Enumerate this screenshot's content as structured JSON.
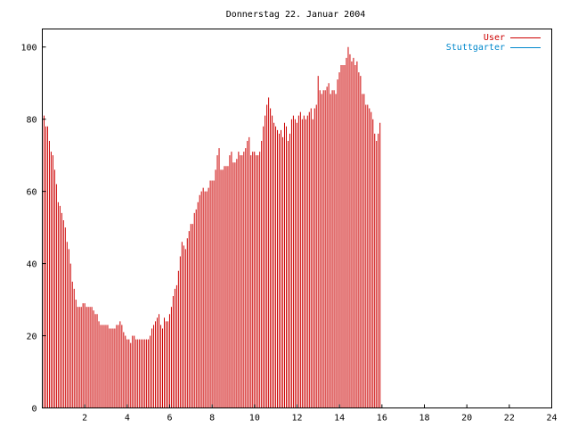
{
  "chart_data": {
    "type": "bar",
    "title": "Donnerstag 22. Januar 2004",
    "xlabel": "",
    "ylabel": "",
    "xlim": [
      0,
      24
    ],
    "ylim": [
      0,
      105
    ],
    "x_ticks": [
      "2",
      "4",
      "6",
      "8",
      "10",
      "12",
      "14",
      "16",
      "18",
      "20",
      "22",
      "24"
    ],
    "y_ticks": [
      "0",
      "20",
      "40",
      "60",
      "80",
      "100"
    ],
    "grid": false,
    "legend_position": "top-right",
    "x_step": 0.0833,
    "series": [
      {
        "name": "User",
        "color": "#cc0000",
        "values": [
          81,
          78,
          78,
          74,
          71,
          70,
          66,
          62,
          57,
          56,
          54,
          52,
          50,
          46,
          44,
          40,
          35,
          33,
          30,
          28,
          28,
          28,
          29,
          29,
          28,
          28,
          28,
          28,
          27,
          26,
          26,
          24,
          23,
          23,
          23,
          23,
          23,
          22,
          22,
          22,
          22,
          23,
          23,
          24,
          23,
          21,
          20,
          19,
          19,
          18,
          20,
          20,
          19,
          19,
          19,
          19,
          19,
          19,
          19,
          19,
          20,
          22,
          23,
          24,
          25,
          26,
          23,
          22,
          25,
          24,
          24,
          26,
          28,
          31,
          33,
          34,
          38,
          42,
          46,
          45,
          44,
          47,
          49,
          51,
          51,
          54,
          55,
          57,
          59,
          60,
          61,
          60,
          60,
          61,
          63,
          63,
          63,
          66,
          70,
          72,
          66,
          66,
          67,
          67,
          67,
          70,
          71,
          68,
          68,
          69,
          71,
          70,
          70,
          71,
          72,
          74,
          75,
          70,
          71,
          71,
          70,
          70,
          71,
          74,
          78,
          81,
          84,
          86,
          83,
          81,
          79,
          78,
          77,
          76,
          77,
          75,
          79,
          78,
          74,
          76,
          80,
          81,
          80,
          79,
          81,
          82,
          80,
          81,
          80,
          81,
          82,
          83,
          80,
          83,
          84,
          92,
          88,
          87,
          88,
          88,
          89,
          90,
          87,
          88,
          88,
          87,
          91,
          93,
          95,
          95,
          95,
          97,
          100,
          98,
          96,
          97,
          95,
          96,
          93,
          92,
          87,
          87,
          84,
          84,
          83,
          82,
          80,
          76,
          74,
          76,
          79
        ]
      },
      {
        "name": "Stuttgarter",
        "color": "#0088cc",
        "values": [
          0,
          0,
          0,
          0,
          0,
          0,
          0,
          0,
          0,
          0,
          0,
          0,
          0,
          0,
          0,
          0,
          0,
          0,
          0,
          0,
          0,
          0,
          0,
          0,
          0,
          0,
          0,
          0,
          0,
          0,
          0,
          0,
          0,
          0,
          0,
          0,
          0,
          0,
          0,
          0,
          0,
          0,
          0,
          0,
          0,
          0,
          0,
          0,
          0,
          0,
          0,
          0,
          0,
          0,
          0,
          0,
          0,
          0,
          0,
          0,
          0,
          0,
          0,
          0,
          0,
          0,
          0,
          0,
          0,
          0,
          0,
          0,
          0,
          0,
          0,
          0,
          0,
          0,
          0,
          0,
          0,
          0,
          0,
          0,
          0,
          0,
          0,
          0,
          0,
          0,
          0,
          0,
          0,
          0,
          0,
          0,
          0,
          0,
          0,
          0,
          0,
          0,
          0,
          0,
          0,
          0,
          0,
          0,
          0,
          0,
          0,
          0,
          0,
          0,
          0,
          0,
          0,
          0,
          0,
          0,
          0,
          0,
          0,
          0,
          0,
          0,
          0,
          0,
          0,
          0,
          0,
          0,
          0,
          0,
          0,
          0,
          0,
          0,
          0,
          0,
          0,
          0,
          0,
          0,
          0,
          0,
          0,
          0,
          0,
          0,
          0,
          0,
          0,
          0,
          0,
          0,
          0,
          0,
          0,
          0,
          0,
          0,
          0,
          0,
          0,
          0,
          0,
          0,
          0,
          0,
          0,
          0,
          0,
          0,
          0,
          0,
          0,
          0,
          0,
          0,
          0,
          0,
          0,
          0,
          0,
          0,
          0,
          0,
          0,
          0
        ]
      }
    ]
  }
}
